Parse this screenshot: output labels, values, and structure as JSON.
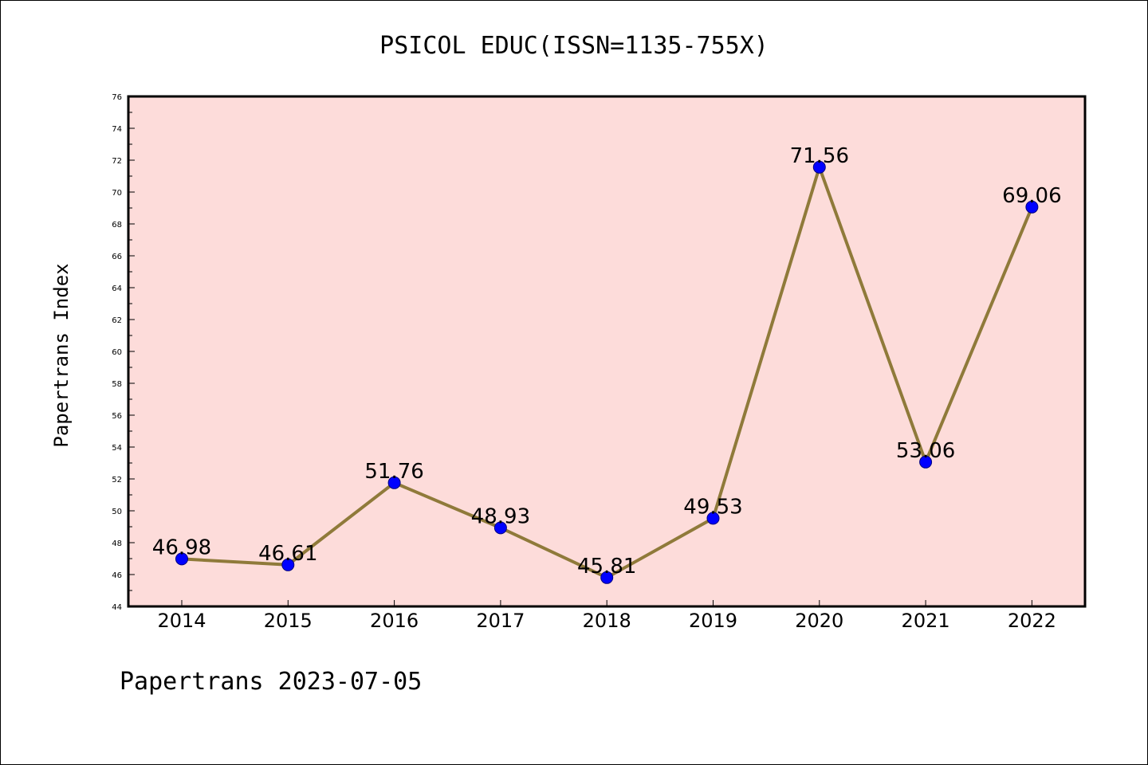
{
  "colors": {
    "plot_background": "#fddcda",
    "line": "#8f7a3a",
    "marker": "#0000ff",
    "marker_edge": "#000080",
    "axes": "#000000"
  },
  "footer": "Papertrans 2023-07-05",
  "chart_data": {
    "type": "line",
    "title": "PSICOL EDUC(ISSN=1135-755X)",
    "xlabel": "",
    "ylabel": "Papertrans Index",
    "categories": [
      "2014",
      "2015",
      "2016",
      "2017",
      "2018",
      "2019",
      "2020",
      "2021",
      "2022"
    ],
    "series": [
      {
        "values": [
          46.98,
          46.61,
          51.76,
          48.93,
          45.81,
          49.53,
          71.56,
          53.06,
          69.06
        ],
        "labels": [
          "46.98",
          "46.61",
          "51.76",
          "48.93",
          "45.81",
          "49.53",
          "71.56",
          "53.06",
          "69.06"
        ]
      }
    ],
    "ylim": [
      44,
      76
    ],
    "yticks": [
      "44",
      "46",
      "48",
      "50",
      "52",
      "54",
      "56",
      "58",
      "60",
      "62",
      "64",
      "66",
      "68",
      "70",
      "72",
      "74",
      "76"
    ],
    "grid": false,
    "legend": "none"
  }
}
